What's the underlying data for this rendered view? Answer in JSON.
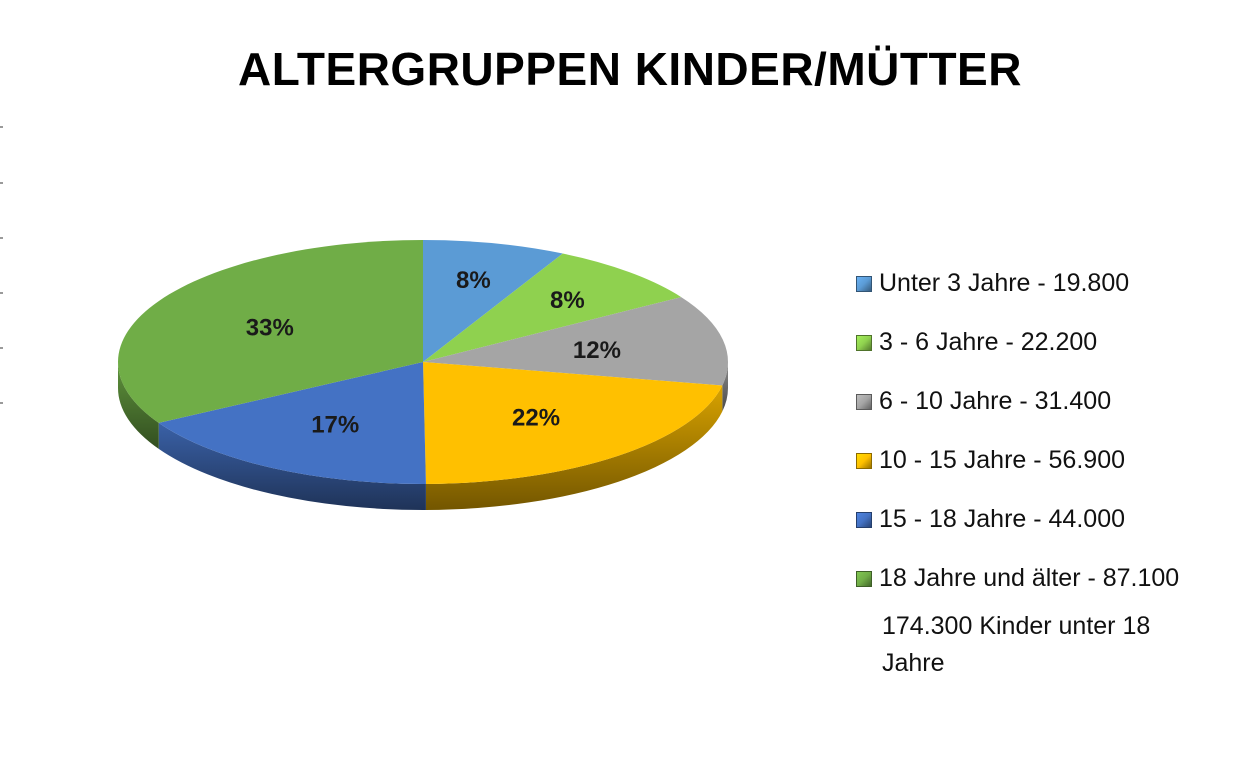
{
  "chart_data": {
    "type": "pie",
    "title": "ALTERGRUPPEN KINDER/MÜTTER",
    "slices": [
      {
        "legend": "Unter 3 Jahre - 19.800",
        "value": 19800,
        "percent_label": "8%",
        "color": "#5b9bd5"
      },
      {
        "legend": "3 - 6 Jahre - 22.200",
        "value": 22200,
        "percent_label": "8%",
        "color": "#8fd14f"
      },
      {
        "legend": "6 - 10 Jahre - 31.400",
        "value": 31400,
        "percent_label": "12%",
        "color": "#a5a5a5"
      },
      {
        "legend": "10 - 15 Jahre - 56.900",
        "value": 56900,
        "percent_label": "22%",
        "color": "#ffc000"
      },
      {
        "legend": "15 - 18 Jahre - 44.000",
        "value": 44000,
        "percent_label": "17%",
        "color": "#4472c4"
      },
      {
        "legend": "18 Jahre und älter - 87.100",
        "value": 87100,
        "percent_label": "33%",
        "color": "#70ad47"
      }
    ],
    "legend_note": "174.300 Kinder unter 18 Jahre",
    "legend_position": "right",
    "style": "3d-pie"
  }
}
